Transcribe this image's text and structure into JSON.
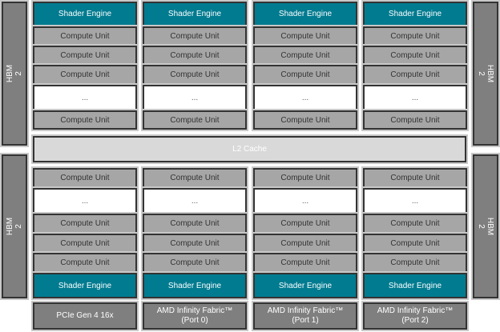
{
  "hbm_label": "HBM 2",
  "shader_engine_label": "Shader Engine",
  "compute_unit_label": "Compute Unit",
  "ellipsis": "...",
  "l2_label": "L2 Cache",
  "ports": [
    "PCIe Gen 4 16x",
    "AMD Infinity Fabric™\n(Port 0)",
    "AMD Infinity Fabric™\n(Port 1)",
    "AMD Infinity Fabric™\n(Port 2)"
  ],
  "top_stack": [
    "se",
    "cu",
    "cu",
    "cu",
    "gap",
    "cu"
  ],
  "bottom_stack": [
    "cu",
    "gap",
    "cu",
    "cu",
    "cu",
    "se"
  ],
  "colors": {
    "shader_engine": "#007b90",
    "compute_unit": "#a6a6a6",
    "hbm": "#7f7f7f",
    "l2": "#d9d9d9"
  }
}
